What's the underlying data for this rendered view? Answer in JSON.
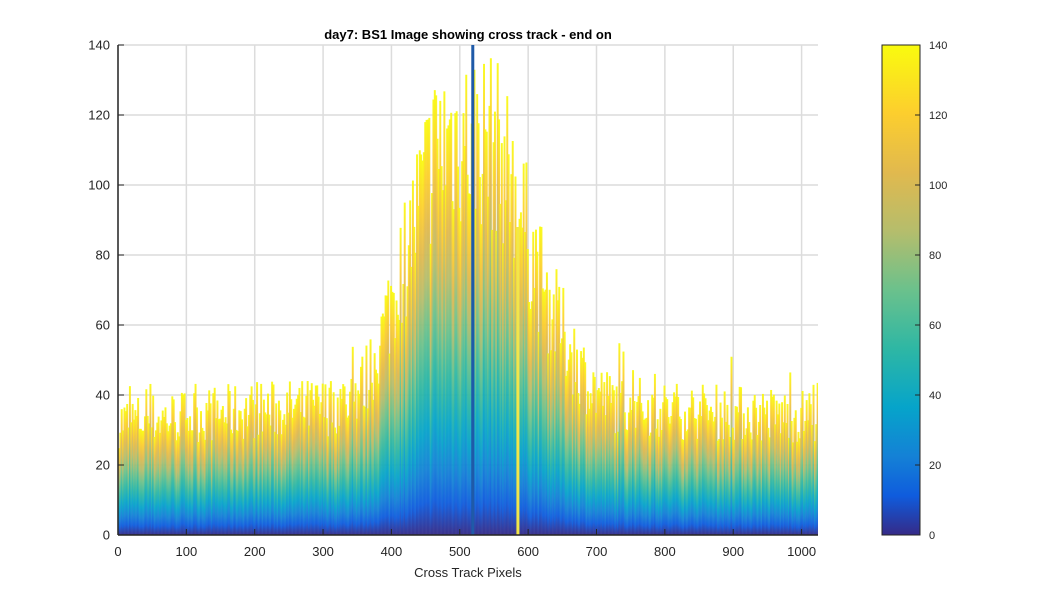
{
  "chart_data": {
    "type": "area",
    "title": "day7: BS1  Image showing cross track - end on",
    "xlabel": "Cross Track Pixels",
    "ylabel": "",
    "xlim": [
      0,
      1024
    ],
    "ylim": [
      0,
      140
    ],
    "xticks": [
      "0",
      "100",
      "200",
      "300",
      "400",
      "500",
      "600",
      "700",
      "800",
      "900",
      "1000"
    ],
    "yticks": [
      "0",
      "20",
      "40",
      "60",
      "80",
      "100",
      "120",
      "140"
    ],
    "grid": true,
    "colormap": "parula",
    "colorbar": {
      "ticks": [
        "0",
        "20",
        "40",
        "60",
        "80",
        "100",
        "120",
        "140"
      ],
      "range": [
        0,
        140
      ]
    },
    "envelope": {
      "x": [
        0,
        100,
        200,
        300,
        340,
        360,
        380,
        400,
        420,
        440,
        460,
        480,
        500,
        520,
        540,
        560,
        580,
        600,
        620,
        640,
        660,
        680,
        700,
        720,
        800,
        900,
        1000,
        1024
      ],
      "y": [
        40,
        42,
        44,
        45,
        48,
        54,
        66,
        84,
        100,
        118,
        134,
        140,
        140,
        140,
        140,
        134,
        120,
        104,
        88,
        76,
        66,
        57,
        50,
        47,
        44,
        43,
        42,
        42
      ]
    },
    "notable_columns": [
      {
        "x": 519,
        "y": 140,
        "note": "dark streak"
      },
      {
        "x": 585,
        "y": 88,
        "note": "bright streak"
      }
    ]
  }
}
